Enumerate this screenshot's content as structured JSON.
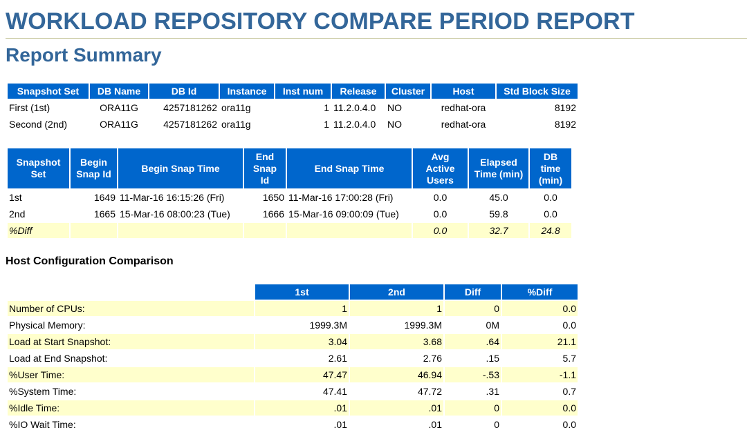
{
  "title": "WORKLOAD REPOSITORY COMPARE PERIOD REPORT",
  "subtitle": "Report Summary",
  "snapshot_table": {
    "headers": [
      "Snapshot Set",
      "DB Name",
      "DB Id",
      "Instance",
      "Inst num",
      "Release",
      "Cluster",
      "Host",
      "Std Block Size"
    ],
    "rows": [
      [
        "First (1st)",
        "ORA11G",
        "4257181262",
        "ora11g",
        "1",
        "11.2.0.4.0",
        "NO",
        "redhat-ora",
        "8192"
      ],
      [
        "Second (2nd)",
        "ORA11G",
        "4257181262",
        "ora11g",
        "1",
        "11.2.0.4.0",
        "NO",
        "redhat-ora",
        "8192"
      ]
    ]
  },
  "snap_time_table": {
    "headers": [
      "Snapshot Set",
      "Begin Snap Id",
      "Begin Snap Time",
      "End Snap Id",
      "End Snap Time",
      "Avg Active Users",
      "Elapsed Time (min)",
      "DB time (min)"
    ],
    "rows": [
      [
        "1st",
        "1649",
        "11-Mar-16 16:15:26 (Fri)",
        "1650",
        "11-Mar-16 17:00:28 (Fri)",
        "0.0",
        "45.0",
        "0.0"
      ],
      [
        "2nd",
        "1665",
        "15-Mar-16 08:00:23 (Tue)",
        "1666",
        "15-Mar-16 09:00:09 (Tue)",
        "0.0",
        "59.8",
        "0.0"
      ],
      [
        "%Diff",
        "",
        "",
        "",
        "",
        "0.0",
        "32.7",
        "24.8"
      ]
    ]
  },
  "host_section_title": "Host Configuration Comparison",
  "host_table": {
    "headers": [
      "",
      "1st",
      "2nd",
      "Diff",
      "%Diff"
    ],
    "rows": [
      [
        "Number of CPUs:",
        "1",
        "1",
        "0",
        "0.0"
      ],
      [
        "Physical Memory:",
        "1999.3M",
        "1999.3M",
        "0M",
        "0.0"
      ],
      [
        "Load at Start Snapshot:",
        "3.04",
        "3.68",
        ".64",
        "21.1"
      ],
      [
        "Load at End Snapshot:",
        "2.61",
        "2.76",
        ".15",
        "5.7"
      ],
      [
        "%User Time:",
        "47.47",
        "46.94",
        "-.53",
        "-1.1"
      ],
      [
        "%System Time:",
        "47.41",
        "47.72",
        ".31",
        "0.7"
      ],
      [
        "%Idle Time:",
        ".01",
        ".01",
        "0",
        "0.0"
      ],
      [
        "%IO Wait Time:",
        ".01",
        ".01",
        "0",
        "0.0"
      ]
    ]
  }
}
